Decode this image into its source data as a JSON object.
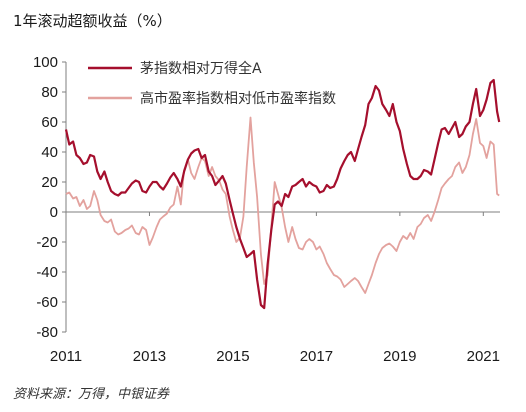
{
  "chart_data": {
    "type": "line",
    "title": "1年滚动超额收益（%）",
    "source": "资料来源：万得，中银证券",
    "ylim": [
      -80,
      100
    ],
    "yticks": [
      100,
      80,
      60,
      40,
      20,
      0,
      -20,
      -40,
      -60,
      -80
    ],
    "xlim": [
      2011.0,
      2021.4
    ],
    "xticks": [
      {
        "value": 2011,
        "label": "2011"
      },
      {
        "value": 2013,
        "label": "2013"
      },
      {
        "value": 2015,
        "label": "2015"
      },
      {
        "value": 2017,
        "label": "2017"
      },
      {
        "value": 2019,
        "label": "2019"
      },
      {
        "value": 2021,
        "label": "2021"
      }
    ],
    "grid": false,
    "legend_position": "top-center",
    "series": [
      {
        "name": "茅指数相对万得全A",
        "color": "#a50f2d",
        "points": [
          [
            2011.0,
            55
          ],
          [
            2011.08,
            45
          ],
          [
            2011.17,
            47
          ],
          [
            2011.25,
            38
          ],
          [
            2011.33,
            36
          ],
          [
            2011.42,
            32
          ],
          [
            2011.5,
            33
          ],
          [
            2011.58,
            38
          ],
          [
            2011.67,
            37
          ],
          [
            2011.75,
            27
          ],
          [
            2011.83,
            22
          ],
          [
            2011.92,
            27
          ],
          [
            2012.0,
            20
          ],
          [
            2012.08,
            14
          ],
          [
            2012.17,
            12
          ],
          [
            2012.25,
            11
          ],
          [
            2012.33,
            13
          ],
          [
            2012.42,
            13
          ],
          [
            2012.5,
            16
          ],
          [
            2012.58,
            19
          ],
          [
            2012.67,
            21
          ],
          [
            2012.75,
            20
          ],
          [
            2012.83,
            14
          ],
          [
            2012.92,
            13
          ],
          [
            2013.0,
            17
          ],
          [
            2013.08,
            20
          ],
          [
            2013.17,
            20
          ],
          [
            2013.25,
            17
          ],
          [
            2013.33,
            15
          ],
          [
            2013.42,
            19
          ],
          [
            2013.5,
            23
          ],
          [
            2013.58,
            26
          ],
          [
            2013.67,
            22
          ],
          [
            2013.75,
            17
          ],
          [
            2013.83,
            27
          ],
          [
            2013.92,
            35
          ],
          [
            2014.0,
            39
          ],
          [
            2014.08,
            41
          ],
          [
            2014.17,
            42
          ],
          [
            2014.25,
            36
          ],
          [
            2014.33,
            38
          ],
          [
            2014.42,
            27
          ],
          [
            2014.5,
            24
          ],
          [
            2014.58,
            18
          ],
          [
            2014.67,
            21
          ],
          [
            2014.75,
            24
          ],
          [
            2014.83,
            19
          ],
          [
            2014.92,
            8
          ],
          [
            2015.0,
            -1
          ],
          [
            2015.08,
            -10
          ],
          [
            2015.17,
            -18
          ],
          [
            2015.25,
            -24
          ],
          [
            2015.33,
            -30
          ],
          [
            2015.42,
            -28
          ],
          [
            2015.5,
            -26
          ],
          [
            2015.58,
            -45
          ],
          [
            2015.67,
            -62
          ],
          [
            2015.75,
            -64
          ],
          [
            2015.83,
            -35
          ],
          [
            2015.92,
            -12
          ],
          [
            2016.0,
            5
          ],
          [
            2016.08,
            7
          ],
          [
            2016.17,
            4
          ],
          [
            2016.25,
            12
          ],
          [
            2016.33,
            10
          ],
          [
            2016.42,
            17
          ],
          [
            2016.5,
            18
          ],
          [
            2016.58,
            20
          ],
          [
            2016.67,
            22
          ],
          [
            2016.75,
            17
          ],
          [
            2016.83,
            20
          ],
          [
            2016.92,
            18
          ],
          [
            2017.0,
            17
          ],
          [
            2017.08,
            13
          ],
          [
            2017.17,
            14
          ],
          [
            2017.25,
            18
          ],
          [
            2017.33,
            16
          ],
          [
            2017.42,
            17
          ],
          [
            2017.5,
            22
          ],
          [
            2017.58,
            29
          ],
          [
            2017.67,
            34
          ],
          [
            2017.75,
            38
          ],
          [
            2017.83,
            40
          ],
          [
            2017.92,
            34
          ],
          [
            2018.0,
            42
          ],
          [
            2018.08,
            50
          ],
          [
            2018.17,
            58
          ],
          [
            2018.25,
            72
          ],
          [
            2018.33,
            76
          ],
          [
            2018.42,
            84
          ],
          [
            2018.5,
            81
          ],
          [
            2018.58,
            72
          ],
          [
            2018.67,
            68
          ],
          [
            2018.75,
            64
          ],
          [
            2018.83,
            72
          ],
          [
            2018.92,
            60
          ],
          [
            2019.0,
            54
          ],
          [
            2019.08,
            42
          ],
          [
            2019.17,
            32
          ],
          [
            2019.25,
            24
          ],
          [
            2019.33,
            22
          ],
          [
            2019.42,
            22
          ],
          [
            2019.5,
            24
          ],
          [
            2019.58,
            28
          ],
          [
            2019.67,
            27
          ],
          [
            2019.75,
            25
          ],
          [
            2019.83,
            35
          ],
          [
            2019.92,
            46
          ],
          [
            2020.0,
            55
          ],
          [
            2020.08,
            56
          ],
          [
            2020.17,
            52
          ],
          [
            2020.25,
            56
          ],
          [
            2020.33,
            60
          ],
          [
            2020.42,
            50
          ],
          [
            2020.5,
            52
          ],
          [
            2020.58,
            57
          ],
          [
            2020.67,
            60
          ],
          [
            2020.75,
            72
          ],
          [
            2020.83,
            82
          ],
          [
            2020.92,
            64
          ],
          [
            2021.0,
            68
          ],
          [
            2021.08,
            75
          ],
          [
            2021.17,
            86
          ],
          [
            2021.25,
            88
          ],
          [
            2021.33,
            67
          ],
          [
            2021.38,
            60
          ]
        ]
      },
      {
        "name": "高市盈率指数相对低市盈率指数",
        "color": "#e3a29e",
        "points": [
          [
            2011.0,
            12
          ],
          [
            2011.08,
            13
          ],
          [
            2011.17,
            9
          ],
          [
            2011.25,
            10
          ],
          [
            2011.33,
            4
          ],
          [
            2011.42,
            8
          ],
          [
            2011.5,
            2
          ],
          [
            2011.58,
            4
          ],
          [
            2011.67,
            14
          ],
          [
            2011.75,
            8
          ],
          [
            2011.83,
            -2
          ],
          [
            2011.92,
            -6
          ],
          [
            2012.0,
            -7
          ],
          [
            2012.08,
            -5
          ],
          [
            2012.17,
            -13
          ],
          [
            2012.25,
            -15
          ],
          [
            2012.33,
            -14
          ],
          [
            2012.42,
            -12
          ],
          [
            2012.5,
            -11
          ],
          [
            2012.58,
            -9
          ],
          [
            2012.67,
            -14
          ],
          [
            2012.75,
            -15
          ],
          [
            2012.83,
            -10
          ],
          [
            2012.92,
            -12
          ],
          [
            2013.0,
            -22
          ],
          [
            2013.08,
            -17
          ],
          [
            2013.17,
            -10
          ],
          [
            2013.25,
            -5
          ],
          [
            2013.33,
            -3
          ],
          [
            2013.42,
            -1
          ],
          [
            2013.5,
            3
          ],
          [
            2013.58,
            5
          ],
          [
            2013.67,
            17
          ],
          [
            2013.75,
            5
          ],
          [
            2013.83,
            28
          ],
          [
            2013.92,
            35
          ],
          [
            2014.0,
            26
          ],
          [
            2014.08,
            22
          ],
          [
            2014.17,
            30
          ],
          [
            2014.25,
            36
          ],
          [
            2014.33,
            34
          ],
          [
            2014.42,
            24
          ],
          [
            2014.5,
            30
          ],
          [
            2014.58,
            24
          ],
          [
            2014.67,
            21
          ],
          [
            2014.75,
            15
          ],
          [
            2014.83,
            12
          ],
          [
            2014.92,
            -3
          ],
          [
            2015.0,
            -12
          ],
          [
            2015.08,
            -20
          ],
          [
            2015.17,
            -17
          ],
          [
            2015.25,
            -3
          ],
          [
            2015.33,
            30
          ],
          [
            2015.42,
            63
          ],
          [
            2015.5,
            33
          ],
          [
            2015.58,
            10
          ],
          [
            2015.67,
            -28
          ],
          [
            2015.75,
            -48
          ],
          [
            2015.83,
            -42
          ],
          [
            2015.92,
            -10
          ],
          [
            2016.0,
            20
          ],
          [
            2016.08,
            12
          ],
          [
            2016.17,
            3
          ],
          [
            2016.25,
            -10
          ],
          [
            2016.33,
            -20
          ],
          [
            2016.42,
            -10
          ],
          [
            2016.5,
            -18
          ],
          [
            2016.58,
            -24
          ],
          [
            2016.67,
            -25
          ],
          [
            2016.75,
            -20
          ],
          [
            2016.83,
            -18
          ],
          [
            2016.92,
            -20
          ],
          [
            2017.0,
            -25
          ],
          [
            2017.08,
            -23
          ],
          [
            2017.17,
            -28
          ],
          [
            2017.25,
            -34
          ],
          [
            2017.33,
            -38
          ],
          [
            2017.42,
            -42
          ],
          [
            2017.5,
            -43
          ],
          [
            2017.58,
            -45
          ],
          [
            2017.67,
            -50
          ],
          [
            2017.75,
            -48
          ],
          [
            2017.83,
            -46
          ],
          [
            2017.92,
            -44
          ],
          [
            2018.0,
            -46
          ],
          [
            2018.08,
            -50
          ],
          [
            2018.17,
            -54
          ],
          [
            2018.25,
            -48
          ],
          [
            2018.33,
            -42
          ],
          [
            2018.42,
            -34
          ],
          [
            2018.5,
            -28
          ],
          [
            2018.58,
            -24
          ],
          [
            2018.67,
            -22
          ],
          [
            2018.75,
            -21
          ],
          [
            2018.83,
            -23
          ],
          [
            2018.92,
            -26
          ],
          [
            2019.0,
            -20
          ],
          [
            2019.08,
            -16
          ],
          [
            2019.17,
            -18
          ],
          [
            2019.25,
            -14
          ],
          [
            2019.33,
            -18
          ],
          [
            2019.42,
            -10
          ],
          [
            2019.5,
            -8
          ],
          [
            2019.58,
            -4
          ],
          [
            2019.67,
            -2
          ],
          [
            2019.75,
            -6
          ],
          [
            2019.83,
            0
          ],
          [
            2019.92,
            8
          ],
          [
            2020.0,
            16
          ],
          [
            2020.08,
            19
          ],
          [
            2020.17,
            22
          ],
          [
            2020.25,
            24
          ],
          [
            2020.33,
            30
          ],
          [
            2020.42,
            33
          ],
          [
            2020.5,
            26
          ],
          [
            2020.58,
            30
          ],
          [
            2020.67,
            38
          ],
          [
            2020.75,
            52
          ],
          [
            2020.83,
            62
          ],
          [
            2020.92,
            46
          ],
          [
            2021.0,
            44
          ],
          [
            2021.08,
            36
          ],
          [
            2021.17,
            47
          ],
          [
            2021.25,
            45
          ],
          [
            2021.33,
            12
          ],
          [
            2021.38,
            11
          ]
        ]
      }
    ]
  }
}
